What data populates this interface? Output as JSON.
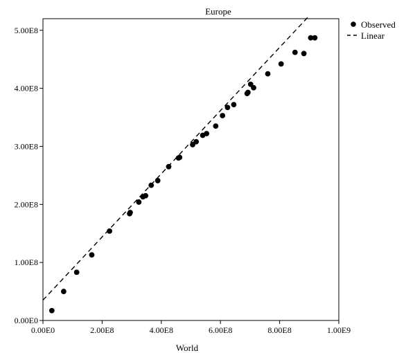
{
  "chart_data": {
    "type": "scatter",
    "title": "Europe",
    "xlabel": "World",
    "ylabel": "",
    "xlim": [
      0,
      1000000000.0
    ],
    "ylim": [
      0,
      520000000.0
    ],
    "x_ticks": [
      {
        "value": 0,
        "label": "0.00E0"
      },
      {
        "value": 200000000.0,
        "label": "2.00E8"
      },
      {
        "value": 400000000.0,
        "label": "4.00E8"
      },
      {
        "value": 600000000.0,
        "label": "6.00E8"
      },
      {
        "value": 800000000.0,
        "label": "8.00E8"
      },
      {
        "value": 1000000000.0,
        "label": "1.00E9"
      }
    ],
    "y_ticks": [
      {
        "value": 0,
        "label": "0.00E0"
      },
      {
        "value": 100000000.0,
        "label": "1.00E8"
      },
      {
        "value": 200000000.0,
        "label": "2.00E8"
      },
      {
        "value": 300000000.0,
        "label": "3.00E8"
      },
      {
        "value": 400000000.0,
        "label": "4.00E8"
      },
      {
        "value": 500000000.0,
        "label": "5.00E8"
      }
    ],
    "grid": false,
    "legend": {
      "placement": "top-right-outside",
      "entries": [
        "Observed",
        "Linear"
      ]
    },
    "series": [
      {
        "name": "Observed",
        "marker": "filled-circle",
        "color": "#000000",
        "points": [
          [
            30000000.0,
            17000000.0
          ],
          [
            70000000.0,
            50000000.0
          ],
          [
            114000000.0,
            83000000.0
          ],
          [
            165000000.0,
            113000000.0
          ],
          [
            225000000.0,
            154000000.0
          ],
          [
            293000000.0,
            184000000.0
          ],
          [
            295000000.0,
            186000000.0
          ],
          [
            324000000.0,
            204000000.0
          ],
          [
            338000000.0,
            213000000.0
          ],
          [
            347000000.0,
            215000000.0
          ],
          [
            366000000.0,
            233000000.0
          ],
          [
            388000000.0,
            241000000.0
          ],
          [
            425000000.0,
            265000000.0
          ],
          [
            458000000.0,
            280000000.0
          ],
          [
            462000000.0,
            281000000.0
          ],
          [
            506000000.0,
            303000000.0
          ],
          [
            518000000.0,
            308000000.0
          ],
          [
            540000000.0,
            319000000.0
          ],
          [
            553000000.0,
            322000000.0
          ],
          [
            584000000.0,
            335000000.0
          ],
          [
            607000000.0,
            353000000.0
          ],
          [
            624000000.0,
            367000000.0
          ],
          [
            645000000.0,
            372000000.0
          ],
          [
            690000000.0,
            391000000.0
          ],
          [
            693000000.0,
            393000000.0
          ],
          [
            702000000.0,
            407000000.0
          ],
          [
            712000000.0,
            401000000.0
          ],
          [
            760000000.0,
            425000000.0
          ],
          [
            805000000.0,
            442000000.0
          ],
          [
            852000000.0,
            462000000.0
          ],
          [
            882000000.0,
            460000000.0
          ],
          [
            905000000.0,
            487000000.0
          ],
          [
            919000000.0,
            487000000.0
          ]
        ]
      },
      {
        "name": "Linear",
        "style": "dashed",
        "color": "#000000",
        "line": [
          [
            0,
            35000000.0
          ],
          [
            900000000.0,
            525000000.0
          ]
        ]
      }
    ]
  }
}
